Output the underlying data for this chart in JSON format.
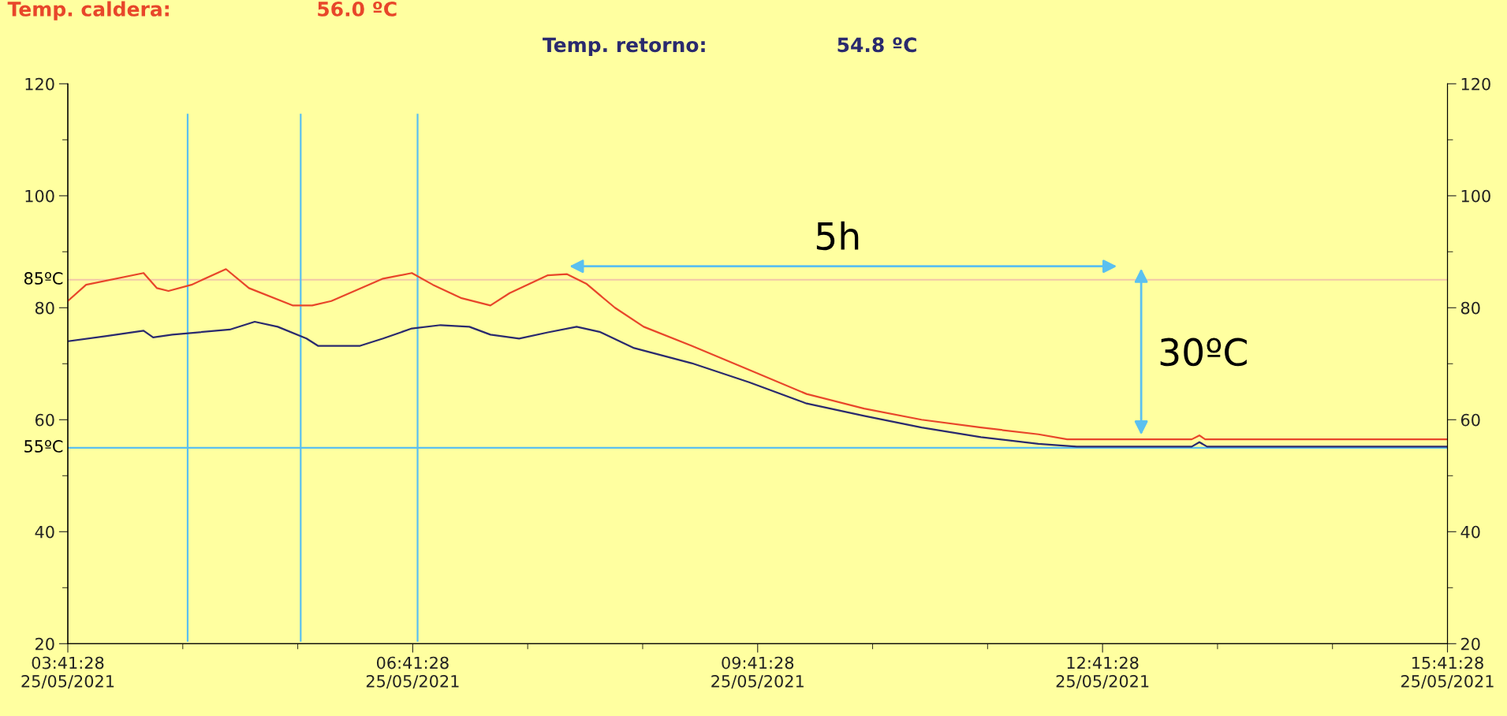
{
  "chart_data": {
    "type": "line",
    "x": [
      "2021-05-25T03:41:28",
      "2021-05-25T03:51",
      "2021-05-25T04:21",
      "2021-05-25T04:28",
      "2021-05-25T04:34",
      "2021-05-25T04:46",
      "2021-05-25T05:04",
      "2021-05-25T05:16",
      "2021-05-25T05:39",
      "2021-05-25T05:49",
      "2021-05-25T05:59",
      "2021-05-25T06:26",
      "2021-05-25T06:41",
      "2021-05-25T06:52",
      "2021-05-25T07:07",
      "2021-05-25T07:22",
      "2021-05-25T07:32",
      "2021-05-25T07:52",
      "2021-05-25T08:02",
      "2021-05-25T08:12",
      "2021-05-25T08:27",
      "2021-05-25T08:42",
      "2021-05-25T09:07",
      "2021-05-25T09:37",
      "2021-05-25T10:07",
      "2021-05-25T10:37",
      "2021-05-25T11:07",
      "2021-05-25T11:38",
      "2021-05-25T12:08",
      "2021-05-25T12:23",
      "2021-05-25T13:28",
      "2021-05-25T13:32",
      "2021-05-25T13:35",
      "2021-05-25T15:41:28"
    ],
    "series": [
      {
        "name": "Temp. caldera:",
        "color": "#e8462a",
        "values": [
          81.2,
          84.1,
          86.2,
          83.5,
          83.0,
          84.1,
          86.9,
          83.5,
          80.4,
          80.4,
          81.2,
          85.2,
          86.2,
          84.1,
          81.7,
          80.4,
          82.6,
          85.8,
          86.0,
          84.3,
          80.0,
          76.6,
          73.2,
          68.9,
          64.6,
          62.0,
          60.0,
          58.6,
          57.4,
          56.5,
          56.5,
          57.2,
          56.5,
          56.5
        ]
      },
      {
        "name": "Temp. retorno:",
        "color": "#2a2a6e",
        "x": [
          "2021-05-25T03:41:28",
          "2021-05-25T04:01",
          "2021-05-25T04:21",
          "2021-05-25T04:26",
          "2021-05-25T04:36",
          "2021-05-25T05:06",
          "2021-05-25T05:19",
          "2021-05-25T05:31",
          "2021-05-25T05:46",
          "2021-05-25T05:52",
          "2021-05-25T06:14",
          "2021-05-25T06:26",
          "2021-05-25T06:41",
          "2021-05-25T06:56",
          "2021-05-25T07:11",
          "2021-05-25T07:22",
          "2021-05-25T07:37",
          "2021-05-25T07:52",
          "2021-05-25T08:07",
          "2021-05-25T08:19",
          "2021-05-25T08:37",
          "2021-05-25T09:07",
          "2021-05-25T09:37",
          "2021-05-25T10:07",
          "2021-05-25T10:37",
          "2021-05-25T11:07",
          "2021-05-25T11:38",
          "2021-05-25T12:08",
          "2021-05-25T12:28",
          "2021-05-25T13:28",
          "2021-05-25T13:32",
          "2021-05-25T13:36",
          "2021-05-25T15:41:28"
        ],
        "values": [
          74.0,
          74.9,
          75.9,
          74.7,
          75.2,
          76.1,
          77.5,
          76.6,
          74.5,
          73.2,
          73.2,
          74.5,
          76.3,
          76.9,
          76.6,
          75.2,
          74.5,
          75.6,
          76.6,
          75.7,
          72.8,
          70.1,
          66.7,
          62.9,
          60.7,
          58.6,
          56.9,
          55.7,
          55.2,
          55.2,
          56.0,
          55.2,
          55.2
        ]
      }
    ],
    "xlim": [
      "2021-05-25T03:41:28",
      "2021-05-25T15:41:28"
    ],
    "xticks": [
      {
        "value": "2021-05-25T03:41:28",
        "label": "03:41:28\n25/05/2021"
      },
      {
        "value": "2021-05-25T06:41:28",
        "label": "06:41:28\n25/05/2021"
      },
      {
        "value": "2021-05-25T09:41:28",
        "label": "09:41:28\n25/05/2021"
      },
      {
        "value": "2021-05-25T12:41:28",
        "label": "12:41:28\n25/05/2021"
      },
      {
        "value": "2021-05-25T15:41:28",
        "label": "15:41:28\n25/05/2021"
      }
    ],
    "ylim": [
      20,
      120
    ],
    "yticks": [
      20,
      40,
      60,
      80,
      100,
      120
    ],
    "y2lim": [
      20,
      120
    ],
    "y2ticks": [
      20,
      40,
      60,
      80,
      100,
      120
    ],
    "ref_lines": [
      {
        "axis": "y",
        "value": 85,
        "label": "85ºC",
        "color": "#f2c6a8"
      },
      {
        "axis": "y",
        "value": 55,
        "label": "55ºC",
        "color": "#5bc0f0"
      },
      {
        "axis": "x",
        "value": "2021-05-25T04:44",
        "color": "#5bc0f0"
      },
      {
        "axis": "x",
        "value": "2021-05-25T05:43",
        "color": "#5bc0f0"
      },
      {
        "axis": "x",
        "value": "2021-05-25T06:44",
        "color": "#5bc0f0"
      }
    ],
    "annotations": [
      "56.0 ºC",
      "54.8 ºC",
      "5h",
      "30ºC"
    ],
    "grid": false,
    "legend": false,
    "marker": "none",
    "line_style": "solid"
  }
}
